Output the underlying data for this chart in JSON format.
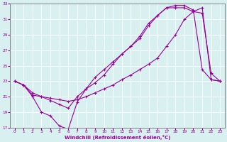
{
  "xlabel": "Windchill (Refroidissement éolien,°C)",
  "xlabel_color": "#990099",
  "bg_color": "#d8f0f0",
  "grid_color": "#b8dada",
  "line_color": "#990099",
  "xlim": [
    -0.5,
    23.5
  ],
  "ylim": [
    17,
    33
  ],
  "xticks": [
    0,
    1,
    2,
    3,
    4,
    5,
    6,
    7,
    8,
    9,
    10,
    11,
    12,
    13,
    14,
    15,
    16,
    17,
    18,
    19,
    20,
    21,
    22,
    23
  ],
  "yticks": [
    17,
    19,
    21,
    23,
    25,
    27,
    29,
    31,
    33
  ],
  "line1_x": [
    0,
    1,
    2,
    3,
    4,
    5,
    6,
    7,
    8,
    9,
    10,
    11,
    12,
    13,
    14,
    15,
    16,
    17,
    18,
    19,
    20,
    21,
    22,
    23
  ],
  "line1_y": [
    23,
    22.5,
    21,
    19,
    18.5,
    17.2,
    16.8,
    20.3,
    22.0,
    23.5,
    24.5,
    25.5,
    26.5,
    27.5,
    28.5,
    30.2,
    31.5,
    32.5,
    32.8,
    32.8,
    32.2,
    24.5,
    23.2,
    23.0
  ],
  "line2_x": [
    0,
    1,
    2,
    3,
    4,
    5,
    6,
    7,
    8,
    9,
    10,
    11,
    12,
    13,
    14,
    15,
    16,
    17,
    18,
    19,
    20,
    21,
    22,
    23
  ],
  "line2_y": [
    23,
    22.5,
    21.5,
    21.0,
    20.5,
    20.0,
    19.5,
    21.0,
    22.0,
    22.8,
    23.8,
    25.2,
    26.5,
    27.5,
    28.8,
    30.5,
    31.5,
    32.5,
    32.5,
    32.5,
    32.0,
    31.8,
    24.0,
    23.0
  ],
  "line3_x": [
    0,
    1,
    2,
    3,
    4,
    5,
    6,
    7,
    8,
    9,
    10,
    11,
    12,
    13,
    14,
    15,
    16,
    17,
    18,
    19,
    20,
    21,
    22,
    23
  ],
  "line3_y": [
    23,
    22.5,
    21.2,
    21.0,
    20.8,
    20.6,
    20.4,
    20.6,
    21.0,
    21.5,
    22.0,
    22.5,
    23.2,
    23.8,
    24.5,
    25.2,
    26.0,
    27.5,
    29.0,
    31.0,
    32.0,
    32.5,
    23.2,
    23.0
  ]
}
